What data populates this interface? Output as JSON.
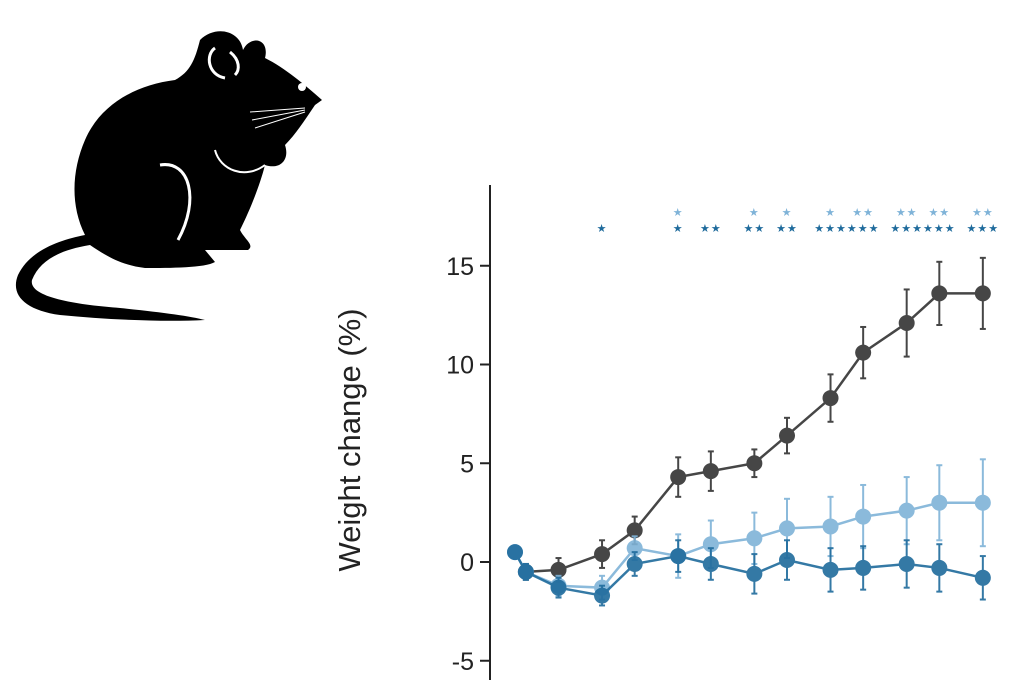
{
  "chart_data": {
    "type": "line",
    "title": "",
    "xlabel": "",
    "ylabel": "Weight change (%)",
    "ylim": [
      -5,
      18
    ],
    "yticks": [
      -5,
      0,
      5,
      10,
      15
    ],
    "yticklabels": [
      "-5",
      "0",
      "5",
      "10",
      "15"
    ],
    "grid": false,
    "x": [
      0,
      1,
      4,
      8,
      11,
      15,
      18,
      22,
      25,
      29,
      32,
      36,
      39,
      43
    ],
    "series": [
      {
        "color": "#333333",
        "values": [
          null,
          -0.5,
          -0.4,
          0.4,
          1.6,
          4.3,
          4.6,
          5.0,
          6.4,
          8.3,
          10.6,
          12.1,
          13.6,
          13.6
        ],
        "errors": [
          null,
          0.4,
          0.6,
          0.7,
          0.7,
          1.0,
          1.0,
          0.7,
          0.9,
          1.2,
          1.3,
          1.7,
          1.6,
          1.8
        ]
      },
      {
        "color": "#7fb3d8",
        "values": [
          0.5,
          -0.5,
          -1.2,
          -1.3,
          0.7,
          0.3,
          0.9,
          1.2,
          1.7,
          1.8,
          2.3,
          2.6,
          3.0,
          3.0
        ],
        "errors": [
          0.3,
          0.4,
          0.5,
          0.6,
          0.6,
          1.1,
          1.2,
          1.3,
          1.5,
          1.5,
          1.6,
          1.7,
          1.9,
          2.2
        ]
      },
      {
        "color": "#1f6b9c",
        "values": [
          0.5,
          -0.5,
          -1.3,
          -1.7,
          -0.1,
          0.3,
          -0.1,
          -0.6,
          0.1,
          -0.4,
          -0.3,
          -0.1,
          -0.3,
          -0.8
        ],
        "errors": [
          0.3,
          0.4,
          0.5,
          0.5,
          0.6,
          0.8,
          0.8,
          1.0,
          1.0,
          1.1,
          1.1,
          1.2,
          1.2,
          1.1
        ]
      }
    ],
    "significance": {
      "light_row": {
        "color": "#7fb3d8",
        "symbol": "★",
        "counts": [
          0,
          0,
          0,
          0,
          0,
          1,
          0,
          1,
          1,
          1,
          2,
          2,
          2,
          2
        ]
      },
      "dark_row": {
        "color": "#1f6b9c",
        "symbol": "★",
        "counts": [
          0,
          0,
          0,
          1,
          0,
          1,
          2,
          2,
          2,
          3,
          3,
          3,
          3,
          3
        ]
      }
    }
  },
  "illustration": {
    "icon": "mouse-silhouette-icon"
  }
}
